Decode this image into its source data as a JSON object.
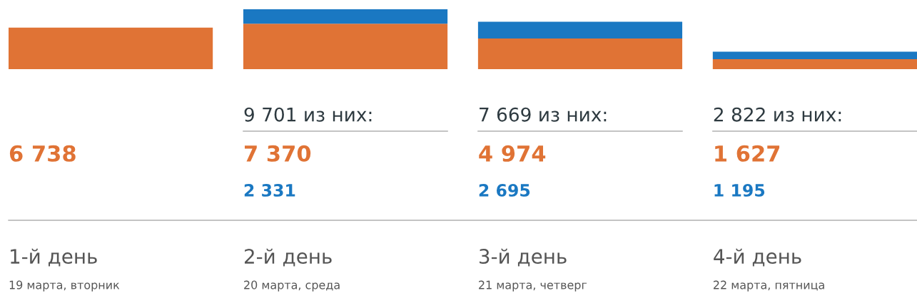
{
  "chart_data": {
    "type": "bar",
    "stacked": true,
    "categories": [
      "1-й день\n19 марта, вторник",
      "2-й день\n20 марта, среда",
      "3-й день\n21 марта, четверг",
      "4-й день\n22 марта, пятница"
    ],
    "series": [
      {
        "color": "#e07335",
        "values": [
          6738,
          7370,
          4974,
          1627
        ],
        "value_labels": [
          "6 738",
          "7 370",
          "4 974",
          "1 627"
        ]
      },
      {
        "color": "#1a78c2",
        "values": [
          null,
          2331,
          2695,
          1195
        ],
        "value_labels": [
          null,
          "2 331",
          "2 695",
          "1 195"
        ]
      }
    ],
    "totals": [
      null,
      "9 701 из них:",
      "7 669 из них:",
      "2 822 из них:"
    ]
  }
}
